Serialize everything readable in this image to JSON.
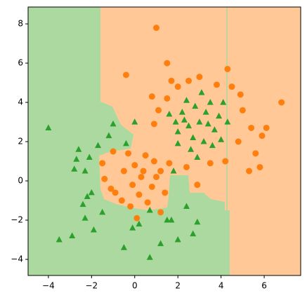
{
  "chart_data": {
    "type": "scatter",
    "xlim": [
      -4.94,
      7.69
    ],
    "ylim": [
      -4.82,
      8.86
    ],
    "xticks": [
      {
        "value": -4,
        "label": "−4"
      },
      {
        "value": -2,
        "label": "−2"
      },
      0,
      2,
      4,
      6
    ],
    "yticks": [
      {
        "value": -4,
        "label": "−4"
      },
      {
        "value": -2,
        "label": "−2"
      },
      0,
      2,
      4,
      6,
      8
    ],
    "series": [
      {
        "color": "#ff7f0e",
        "marker": "circle",
        "x": [
          1.0,
          1.5,
          -0.4,
          6.8,
          6.1,
          5.3,
          5.8,
          4.3,
          3.0,
          2.5,
          1.7,
          2.0,
          1.5,
          0.8,
          1.1,
          0.9,
          4.9,
          5.0,
          5.4,
          5.6,
          4.8,
          4.2,
          3.5,
          2.4,
          2.9,
          5.9,
          3.8,
          4.5,
          0.3,
          0.0,
          -0.5,
          0.8,
          1.2,
          -1.1,
          -1.4,
          -1.5,
          -0.9,
          0.5,
          1.4,
          0.6,
          -0.2,
          -0.1,
          0.9,
          1.6,
          -1.0,
          0.1,
          1.2,
          -0.6,
          0.4,
          -0.3,
          1.0,
          0.2
        ],
        "values": [
          7.8,
          6.0,
          5.4,
          4.0,
          2.7,
          0.5,
          0.7,
          5.7,
          5.3,
          5.1,
          5.1,
          4.8,
          4.2,
          4.3,
          3.6,
          2.9,
          4.4,
          3.6,
          2.7,
          1.4,
          2.0,
          1.0,
          0.9,
          0.7,
          -0.2,
          2.3,
          4.9,
          4.8,
          0.2,
          0.8,
          0.5,
          -0.3,
          0.5,
          -0.4,
          0.1,
          0.9,
          -0.6,
          1.3,
          -0.6,
          -1.1,
          -1.3,
          -0.2,
          1.0,
          0.9,
          1.5,
          -1.9,
          -1.6,
          -1.0,
          0.5,
          1.4,
          0.2,
          -0.7
        ]
      },
      {
        "color": "#2ca02c",
        "marker": "triangle",
        "x": [
          -4.0,
          -3.5,
          -2.9,
          -1.9,
          0.7,
          -0.5,
          1.2,
          2.7,
          -1.7,
          -2.3,
          -2.6,
          -2.1,
          -2.8,
          -2.0,
          -2.2,
          -2.4,
          -1.5,
          -2.3,
          -1.0,
          -0.4,
          0.0,
          0.7,
          1.5,
          1.7,
          2.4,
          2.9,
          2.0,
          -0.1,
          0.2,
          1.8,
          -1.2,
          -2.7,
          3.0,
          2.5,
          3.3,
          2.8,
          2.2,
          3.7,
          3.5,
          2.0,
          3.9,
          2.7,
          3.2,
          4.0,
          2.4,
          1.9,
          3.1,
          2.6,
          4.3,
          3.6,
          2.9,
          2.0,
          1.6,
          4.1,
          3.4,
          2.3
        ],
        "values": [
          2.7,
          -3.0,
          -2.8,
          -2.5,
          -3.9,
          -3.4,
          -3.2,
          -2.7,
          1.8,
          0.5,
          1.6,
          1.2,
          0.6,
          -0.6,
          -0.8,
          -1.2,
          -1.6,
          -1.9,
          2.9,
          1.9,
          3.0,
          -1.5,
          -2.0,
          -2.0,
          -1.3,
          -2.1,
          -3.0,
          -2.4,
          -2.2,
          0.5,
          2.3,
          1.1,
          3.0,
          2.8,
          3.5,
          3.8,
          3.5,
          2.6,
          4.0,
          2.5,
          3.3,
          2.2,
          2.0,
          2.1,
          4.1,
          3.0,
          4.5,
          1.6,
          3.0,
          1.8,
          1.2,
          1.9,
          3.4,
          4.0,
          2.9,
          3.1
        ]
      }
    ]
  }
}
